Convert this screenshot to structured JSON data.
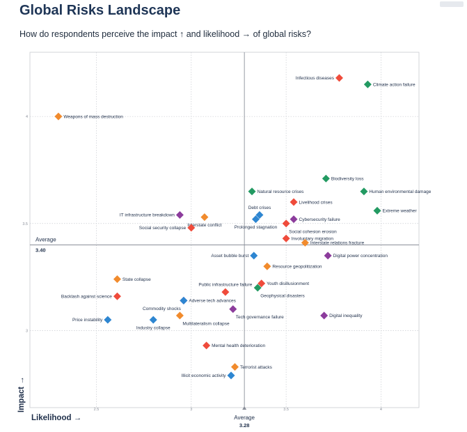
{
  "header": {
    "title": "Global Risks Landscape",
    "subtitle": "How do respondents perceive the impact ↑ and likelihood → of global risks?"
  },
  "colors": {
    "economic": "#2e86d1",
    "environmental": "#239a62",
    "geopolitical": "#f18b2d",
    "societal": "#ef4b3b",
    "technological": "#8c3c9c",
    "grid": "#c9ccd1",
    "average_line": "#8a8f99"
  },
  "chart_data": {
    "type": "scatter",
    "xlabel": "Likelihood →",
    "ylabel": "Impact →",
    "xlim": [
      2.15,
      4.2
    ],
    "ylim": [
      2.64,
      4.3
    ],
    "x_ticks": [
      {
        "value": 2.5,
        "label": "2.5"
      },
      {
        "value": 3.0,
        "label": "3"
      },
      {
        "value": 3.5,
        "label": "3.5"
      },
      {
        "value": 4.0,
        "label": "4"
      }
    ],
    "y_ticks": [
      {
        "value": 3.0,
        "label": "3"
      },
      {
        "value": 3.5,
        "label": "3.5"
      },
      {
        "value": 4.0,
        "label": "4"
      }
    ],
    "grid": true,
    "x_average": {
      "value": 3.28,
      "title": "Average",
      "value_label": "3.28"
    },
    "y_average": {
      "value": 3.4,
      "title": "Average",
      "value_label": "3.40"
    },
    "points": [
      {
        "label": "Infectious diseases",
        "x": 3.78,
        "y": 4.18,
        "category": "societal",
        "side": "left"
      },
      {
        "label": "Climate action failure",
        "x": 3.93,
        "y": 4.15,
        "category": "environmental",
        "side": "right"
      },
      {
        "label": "Weapons of mass destruction",
        "x": 2.3,
        "y": 4.0,
        "category": "geopolitical",
        "side": "right"
      },
      {
        "label": "Biodiversity loss",
        "x": 3.71,
        "y": 3.71,
        "category": "environmental",
        "side": "right"
      },
      {
        "label": "Human environmental damage",
        "x": 3.91,
        "y": 3.65,
        "category": "environmental",
        "side": "right"
      },
      {
        "label": "Natural resource crises",
        "x": 3.32,
        "y": 3.65,
        "category": "environmental",
        "side": "right"
      },
      {
        "label": "Livelihood crises",
        "x": 3.54,
        "y": 3.6,
        "category": "societal",
        "side": "right"
      },
      {
        "label": "Extreme weather",
        "x": 3.98,
        "y": 3.56,
        "category": "environmental",
        "side": "right"
      },
      {
        "label": "Debt crises",
        "x": 3.36,
        "y": 3.54,
        "category": "economic",
        "side": "top"
      },
      {
        "label": "Prolonged stagnation",
        "x": 3.34,
        "y": 3.52,
        "category": "economic",
        "side": "bottom"
      },
      {
        "label": "Cybersecurity failure",
        "x": 3.54,
        "y": 3.52,
        "category": "technological",
        "side": "right"
      },
      {
        "label": "Social cohesion erosion",
        "x": 3.5,
        "y": 3.5,
        "category": "societal",
        "side": "bottom-right"
      },
      {
        "label": "IT infrastructure breakdown",
        "x": 2.94,
        "y": 3.54,
        "category": "technological",
        "side": "left"
      },
      {
        "label": "Interstate conflict",
        "x": 3.07,
        "y": 3.53,
        "category": "geopolitical",
        "side": "bottom"
      },
      {
        "label": "Social security collapse",
        "x": 3.0,
        "y": 3.48,
        "category": "societal",
        "side": "left"
      },
      {
        "label": "Involuntary migration",
        "x": 3.5,
        "y": 3.43,
        "category": "societal",
        "side": "right"
      },
      {
        "label": "Interstate relations fracture",
        "x": 3.6,
        "y": 3.41,
        "category": "geopolitical",
        "side": "right"
      },
      {
        "label": "Digital power concentration",
        "x": 3.72,
        "y": 3.35,
        "category": "technological",
        "side": "right"
      },
      {
        "label": "Asset bubble burst",
        "x": 3.33,
        "y": 3.35,
        "category": "economic",
        "side": "left"
      },
      {
        "label": "Resource geopolitization",
        "x": 3.4,
        "y": 3.3,
        "category": "geopolitical",
        "side": "right"
      },
      {
        "label": "State collapse",
        "x": 2.61,
        "y": 3.24,
        "category": "geopolitical",
        "side": "right"
      },
      {
        "label": "Public infrastructure failure",
        "x": 3.18,
        "y": 3.18,
        "category": "societal",
        "side": "top"
      },
      {
        "label": "Youth disillusionment",
        "x": 3.37,
        "y": 3.22,
        "category": "societal",
        "side": "right"
      },
      {
        "label": "Geophysical disasters",
        "x": 3.35,
        "y": 3.2,
        "category": "environmental",
        "side": "bottom-right"
      },
      {
        "label": "Backlash against science",
        "x": 2.61,
        "y": 3.16,
        "category": "societal",
        "side": "left"
      },
      {
        "label": "Adverse tech advances",
        "x": 2.96,
        "y": 3.14,
        "category": "technological",
        "side": "right"
      },
      {
        "label": "Commodity shocks",
        "x": 2.96,
        "y": 3.14,
        "category": "economic",
        "side": "bottom-left"
      },
      {
        "label": "Tech governance failure",
        "x": 3.22,
        "y": 3.1,
        "category": "technological",
        "side": "bottom-right"
      },
      {
        "label": "Digital inequality",
        "x": 3.7,
        "y": 3.07,
        "category": "technological",
        "side": "right"
      },
      {
        "label": "Multilateralism collapse",
        "x": 2.94,
        "y": 3.07,
        "category": "geopolitical",
        "side": "bottom-right"
      },
      {
        "label": "Price instability",
        "x": 2.56,
        "y": 3.05,
        "category": "economic",
        "side": "left"
      },
      {
        "label": "Industry collapse",
        "x": 2.8,
        "y": 3.05,
        "category": "economic",
        "side": "bottom"
      },
      {
        "label": "Mental health deterioration",
        "x": 3.08,
        "y": 2.93,
        "category": "societal",
        "side": "right"
      },
      {
        "label": "Terrorist attacks",
        "x": 3.23,
        "y": 2.83,
        "category": "geopolitical",
        "side": "right"
      },
      {
        "label": "Illicit economic activity",
        "x": 3.21,
        "y": 2.79,
        "category": "economic",
        "side": "left"
      }
    ]
  }
}
